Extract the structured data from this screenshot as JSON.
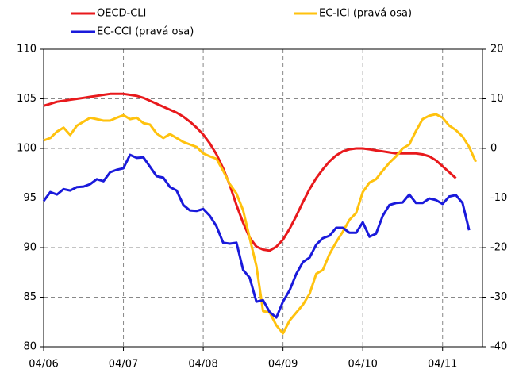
{
  "chart_data": {
    "type": "line",
    "categories": [
      "04/06",
      null,
      null,
      null,
      null,
      null,
      null,
      null,
      null,
      null,
      null,
      null,
      "04/07",
      null,
      null,
      null,
      null,
      null,
      null,
      null,
      null,
      null,
      null,
      null,
      "04/08",
      null,
      null,
      null,
      null,
      null,
      null,
      null,
      null,
      null,
      null,
      null,
      "04/09",
      null,
      null,
      null,
      null,
      null,
      null,
      null,
      null,
      null,
      null,
      null,
      "04/10",
      null,
      null,
      null,
      null,
      null,
      null,
      null,
      null,
      null,
      null,
      null,
      "04/11",
      null,
      null,
      null,
      null,
      null
    ],
    "ylim": [
      80,
      110
    ],
    "yticks": [
      80,
      85,
      90,
      95,
      100,
      105,
      110
    ],
    "y2lim": [
      -40,
      20
    ],
    "y2ticks": [
      -40,
      -30,
      -20,
      -10,
      0,
      10,
      20
    ],
    "grid": true,
    "series": [
      {
        "name": "OECD-CLI",
        "color": "#e8191c",
        "values": [
          104.3,
          104.5,
          104.7,
          104.8,
          104.9,
          105.0,
          105.1,
          105.2,
          105.3,
          105.4,
          105.5,
          105.5,
          105.5,
          105.4,
          105.3,
          105.1,
          104.8,
          104.5,
          104.2,
          103.9,
          103.6,
          103.2,
          102.7,
          102.1,
          101.4,
          100.5,
          99.4,
          98.0,
          96.3,
          94.3,
          92.5,
          91.0,
          90.1,
          89.8,
          89.7,
          90.1,
          90.8,
          91.9,
          93.2,
          94.6,
          95.9,
          97.0,
          97.9,
          98.7,
          99.3,
          99.7,
          99.9,
          100.0,
          100.0,
          99.9,
          99.8,
          99.7,
          99.6,
          99.5,
          99.5,
          99.5,
          99.5,
          99.4,
          99.2,
          98.8,
          98.2,
          97.6,
          97.0,
          null,
          null,
          null
        ]
      },
      {
        "name": "EC-ICI (pravá osa)",
        "color": "#ffc20e",
        "axis": "y2",
        "values": [
          1.6,
          2.1,
          3.4,
          4.2,
          2.7,
          4.6,
          5.4,
          6.2,
          5.9,
          5.6,
          5.6,
          6.2,
          6.7,
          5.9,
          6.2,
          5.1,
          4.8,
          3.0,
          2.1,
          2.9,
          2.1,
          1.3,
          0.8,
          0.3,
          -1.0,
          -1.6,
          -2.1,
          -4.5,
          -7.2,
          -9.1,
          -12.5,
          -18.1,
          -23.7,
          -32.8,
          -33.1,
          -35.7,
          -37.3,
          -34.7,
          -33.1,
          -31.5,
          -29.3,
          -25.3,
          -24.5,
          -21.3,
          -18.9,
          -16.8,
          -14.4,
          -13.0,
          -8.8,
          -6.9,
          -6.2,
          -4.5,
          -2.9,
          -1.6,
          0.0,
          0.8,
          3.5,
          5.9,
          6.6,
          6.9,
          6.2,
          4.6,
          3.7,
          2.4,
          0.3,
          -2.7
        ]
      },
      {
        "name": "EC-CCI (pravá osa)",
        "color": "#1a1adb",
        "axis": "y2",
        "values": [
          -10.6,
          -8.8,
          -9.3,
          -8.2,
          -8.5,
          -7.8,
          -7.7,
          -7.2,
          -6.2,
          -6.6,
          -4.8,
          -4.3,
          -4.0,
          -1.3,
          -1.9,
          -1.8,
          -3.7,
          -5.6,
          -5.9,
          -7.8,
          -8.5,
          -11.4,
          -12.5,
          -12.6,
          -12.2,
          -13.6,
          -15.7,
          -19.0,
          -19.2,
          -19.0,
          -24.5,
          -26.1,
          -30.9,
          -30.6,
          -33.0,
          -34.1,
          -30.9,
          -28.6,
          -25.3,
          -22.9,
          -22.0,
          -19.4,
          -18.1,
          -17.6,
          -16.0,
          -16.0,
          -17.0,
          -17.0,
          -14.9,
          -17.8,
          -17.2,
          -13.6,
          -11.4,
          -11.0,
          -10.9,
          -9.3,
          -11.0,
          -11.0,
          -10.1,
          -10.4,
          -11.2,
          -9.7,
          -9.4,
          -11.0,
          -16.5,
          null
        ]
      }
    ]
  }
}
